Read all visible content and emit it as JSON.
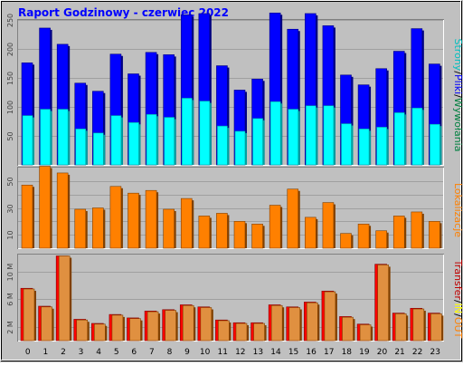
{
  "title": "Raport Godzinowy -  czerwiec 2022",
  "colors": {
    "background": "#c0c0c0",
    "panel": "#c0c0c0",
    "title": "#0000ff",
    "grid": "#a0a0a0",
    "pages": "#0000ff",
    "pages_dark": "#000080",
    "hits": "#00ffff",
    "hits_dark": "#00a0a0",
    "visits": "#ff8000",
    "visits_dark": "#804000",
    "kb_out": "#ff0000",
    "kb_out_dark": "#800000",
    "kb_in": "#e09040",
    "kb_in_dark": "#804000",
    "files": "#00c0c0",
    "files_dark": "#006060"
  },
  "legends": {
    "top": [
      {
        "text": "Strony",
        "color": "#00c0c0"
      },
      {
        "text": "/",
        "color": "#000000"
      },
      {
        "text": "Pliki",
        "color": "#0000ff"
      },
      {
        "text": "/",
        "color": "#000000"
      },
      {
        "text": "Wywołania",
        "color": "#008040"
      }
    ],
    "middle": [
      {
        "text": "Lokalizacje",
        "color": "#ff8000"
      }
    ],
    "bottom": [
      {
        "text": "Transfer",
        "color": "#c00000"
      },
      {
        "text": "/",
        "color": "#000000"
      },
      {
        "text": "IN",
        "color": "#ffff00"
      },
      {
        "text": "/",
        "color": "#000000"
      },
      {
        "text": "OUT",
        "color": "#ff8000"
      }
    ]
  },
  "chart_data": [
    {
      "type": "bar",
      "name": "top",
      "categories": [
        "0",
        "1",
        "2",
        "3",
        "4",
        "5",
        "6",
        "7",
        "8",
        "9",
        "10",
        "11",
        "12",
        "13",
        "14",
        "15",
        "16",
        "17",
        "18",
        "19",
        "20",
        "21",
        "22",
        "23"
      ],
      "ylim": [
        0,
        250
      ],
      "yticks": [
        50,
        100,
        150,
        200,
        250
      ],
      "ytick_labels": [
        "50",
        "100",
        "150",
        "200",
        "250"
      ],
      "series": [
        {
          "key": "pages",
          "values": [
            176,
            236,
            208,
            141,
            127,
            191,
            157,
            194,
            190,
            259,
            261,
            171,
            129,
            148,
            262,
            234,
            261,
            240,
            155,
            138,
            166,
            196,
            235,
            174
          ]
        },
        {
          "key": "hits",
          "values": [
            85,
            96,
            96,
            62,
            55,
            85,
            73,
            87,
            82,
            115,
            110,
            67,
            58,
            80,
            109,
            96,
            102,
            102,
            71,
            62,
            65,
            90,
            98,
            70
          ]
        }
      ]
    },
    {
      "type": "bar",
      "name": "middle",
      "categories": [
        "0",
        "1",
        "2",
        "3",
        "4",
        "5",
        "6",
        "7",
        "8",
        "9",
        "10",
        "11",
        "12",
        "13",
        "14",
        "15",
        "16",
        "17",
        "18",
        "19",
        "20",
        "21",
        "22",
        "23"
      ],
      "ylim": [
        0,
        60
      ],
      "yticks": [
        10,
        20,
        30,
        40,
        50
      ],
      "ytick_labels": [
        "10",
        "",
        "30",
        "",
        "50"
      ],
      "series": [
        {
          "key": "visits",
          "values": [
            47,
            61,
            56,
            29,
            30,
            46,
            41,
            43,
            29,
            37,
            24,
            26,
            20,
            18,
            32,
            44,
            23,
            34,
            11,
            18,
            13,
            24,
            27,
            20
          ]
        }
      ]
    },
    {
      "type": "bar",
      "name": "bottom",
      "categories": [
        "0",
        "1",
        "2",
        "3",
        "4",
        "5",
        "6",
        "7",
        "8",
        "9",
        "10",
        "11",
        "12",
        "13",
        "14",
        "15",
        "16",
        "17",
        "18",
        "19",
        "20",
        "21",
        "22",
        "23"
      ],
      "ylim": [
        0,
        12.5
      ],
      "yticks": [
        2,
        6,
        10
      ],
      "ytick_labels": [
        "2 M",
        "6 M",
        "10 M"
      ],
      "series": [
        {
          "key": "kb_out",
          "values": [
            7.6,
            5.0,
            12.3,
            3.1,
            2.5,
            3.8,
            3.3,
            4.3,
            4.5,
            5.2,
            4.9,
            3.0,
            2.6,
            2.6,
            5.2,
            4.9,
            5.6,
            7.2,
            3.5,
            2.4,
            11.1,
            4.0,
            4.7,
            4.0
          ]
        },
        {
          "key": "kb_in",
          "values": [
            7.5,
            4.9,
            12.3,
            3.0,
            2.4,
            3.7,
            3.2,
            4.2,
            4.4,
            5.1,
            4.8,
            2.9,
            2.5,
            2.5,
            5.1,
            4.8,
            5.5,
            7.1,
            3.4,
            2.3,
            11.0,
            3.9,
            4.6,
            3.9
          ]
        }
      ]
    }
  ]
}
